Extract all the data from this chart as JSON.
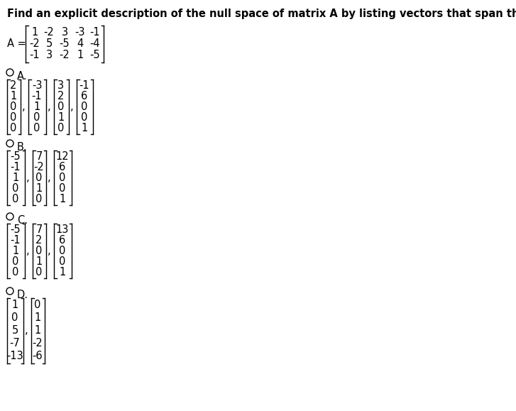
{
  "title": "Find an explicit description of the null space of matrix A by listing vectors that span the null space.",
  "matrix_A": [
    [
      "1 -2  3 -3 -1"
    ],
    [
      "-2  5 -5  4 -4"
    ],
    [
      "-1  3 -2  1 -5"
    ]
  ],
  "opt_A_vecs": [
    [
      "2",
      "1",
      "0",
      "0",
      "0"
    ],
    [
      "-3",
      "-1",
      "1",
      "0",
      "0"
    ],
    [
      "3",
      "2",
      "0",
      "1",
      "0"
    ],
    [
      "-1",
      "6",
      "0",
      "0",
      "1"
    ]
  ],
  "opt_B_vecs": [
    [
      "-5",
      "-1",
      "1",
      "0",
      "0"
    ],
    [
      "7",
      "-2",
      "0",
      "1",
      "0"
    ],
    [
      "12",
      "6",
      "0",
      "0",
      "1"
    ]
  ],
  "opt_C_vecs": [
    [
      "-5",
      "-1",
      "1",
      "0",
      "0"
    ],
    [
      "7",
      "2",
      "0",
      "1",
      "0"
    ],
    [
      "13",
      "6",
      "0",
      "0",
      "1"
    ]
  ],
  "opt_D_vecs": [
    [
      "1",
      "0",
      "5",
      "-7",
      "-13"
    ],
    [
      "0",
      "1",
      "1",
      "-2",
      "-6"
    ]
  ],
  "bg_color": "#ffffff",
  "text_color": "#000000",
  "title_fontsize": 10.5,
  "body_fontsize": 10.5,
  "matrix_fontsize": 10.5
}
